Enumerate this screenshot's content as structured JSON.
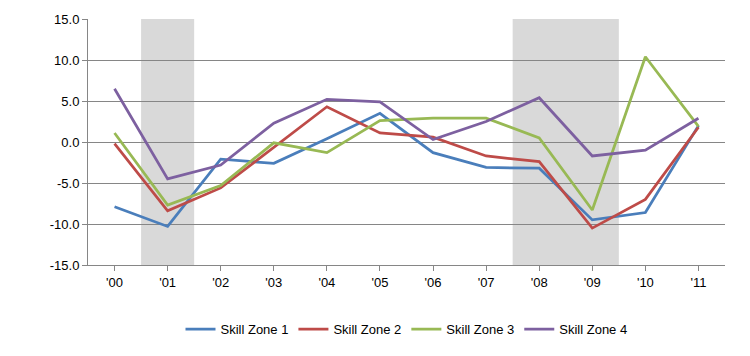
{
  "chart_data": {
    "type": "line",
    "categories": [
      "'00",
      "'01",
      "'02",
      "'03",
      "'04",
      "'05",
      "'06",
      "'07",
      "'08",
      "'09",
      "'10",
      "'11"
    ],
    "series": [
      {
        "name": "Skill Zone 1",
        "color": "#4a7ebb",
        "values": [
          -7.9,
          -10.3,
          -2.1,
          -2.6,
          0.4,
          3.5,
          -1.3,
          -3.1,
          -3.2,
          -9.5,
          -8.6,
          2.0
        ]
      },
      {
        "name": "Skill Zone 2",
        "color": "#be4b48",
        "values": [
          -0.2,
          -8.4,
          -5.6,
          -0.6,
          4.3,
          1.1,
          0.6,
          -1.7,
          -2.4,
          -10.5,
          -7.0,
          1.8
        ]
      },
      {
        "name": "Skill Zone 3",
        "color": "#98b954",
        "values": [
          1.1,
          -7.7,
          -5.3,
          -0.1,
          -1.3,
          2.6,
          2.9,
          2.9,
          0.5,
          -8.3,
          10.4,
          1.9
        ]
      },
      {
        "name": "Skill Zone 4",
        "color": "#7d60a0",
        "values": [
          6.5,
          -4.5,
          -2.8,
          2.3,
          5.2,
          4.9,
          0.3,
          2.5,
          5.4,
          -1.7,
          -1.0,
          2.9
        ]
      }
    ],
    "ylim": [
      -15,
      15
    ],
    "yticks": [
      {
        "value": -15,
        "label": "-15.0"
      },
      {
        "value": -10,
        "label": "-10.0"
      },
      {
        "value": -5,
        "label": "-5.0"
      },
      {
        "value": 0,
        "label": "0.0"
      },
      {
        "value": 5,
        "label": "5.0"
      },
      {
        "value": 10,
        "label": "10.0"
      },
      {
        "value": 15,
        "label": "15.0"
      }
    ],
    "grid": true,
    "legend": "bottom",
    "shaded_ranges": [
      {
        "from": "'01",
        "to": "'01"
      },
      {
        "from": "'08",
        "to": "'09"
      }
    ]
  }
}
